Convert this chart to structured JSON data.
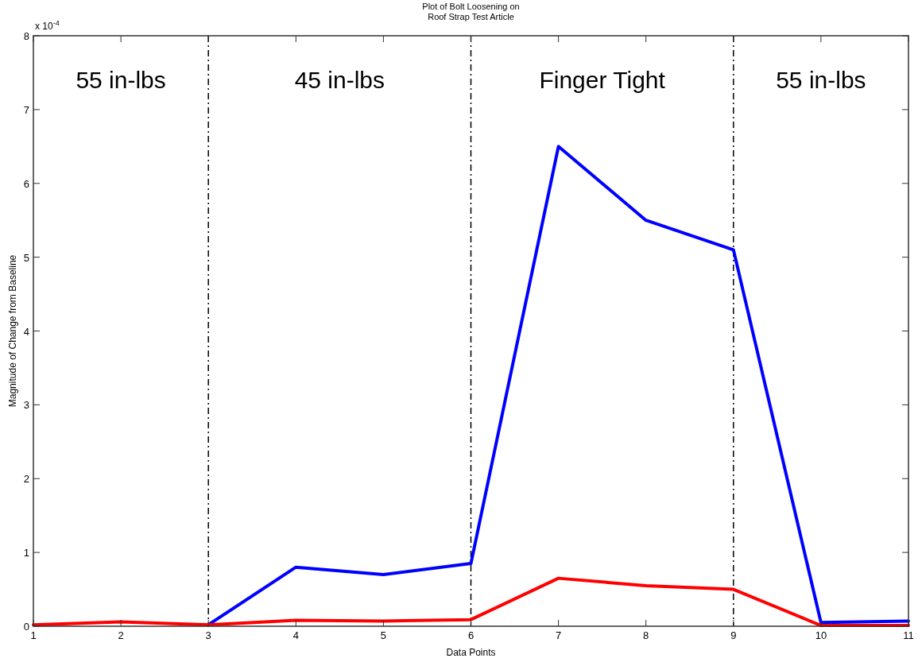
{
  "chart_data": {
    "type": "line",
    "title": "Plot of Bolt Loosening on\nRoof Strap Test Article",
    "xlabel": "Data Points",
    "ylabel": "Magnitude of Change from Baseline",
    "x": [
      1,
      2,
      3,
      4,
      5,
      6,
      7,
      8,
      9,
      10,
      11
    ],
    "series": [
      {
        "color": "#0000ff",
        "values": [
          null,
          null,
          0.02,
          0.8,
          0.7,
          0.85,
          6.5,
          5.5,
          5.1,
          0.05,
          0.07
        ]
      },
      {
        "color": "#ff0000",
        "values": [
          0.02,
          0.06,
          0.02,
          0.08,
          0.07,
          0.09,
          0.65,
          0.55,
          0.5,
          0.01,
          0.01
        ]
      }
    ],
    "xlim": [
      1,
      11
    ],
    "xticks": [
      1,
      2,
      3,
      4,
      5,
      6,
      7,
      8,
      9,
      10,
      11
    ],
    "ylim": [
      0,
      8
    ],
    "yticks": [
      0,
      1,
      2,
      3,
      4,
      5,
      6,
      7,
      8
    ],
    "ref_lines": [
      {
        "axis": "x",
        "value": 3,
        "color": "#000000",
        "line_style": "dashdot"
      },
      {
        "axis": "x",
        "value": 6,
        "color": "#000000",
        "line_style": "dashdot"
      },
      {
        "axis": "x",
        "value": 9,
        "color": "#000000",
        "line_style": "dashdot"
      }
    ],
    "annotations": [
      "x 10$^{-4}$",
      "55 in-lbs",
      "45 in-lbs",
      "Finger Tight",
      "55 in-lbs"
    ],
    "grid": false,
    "marker": "none",
    "line_style": "solid"
  }
}
